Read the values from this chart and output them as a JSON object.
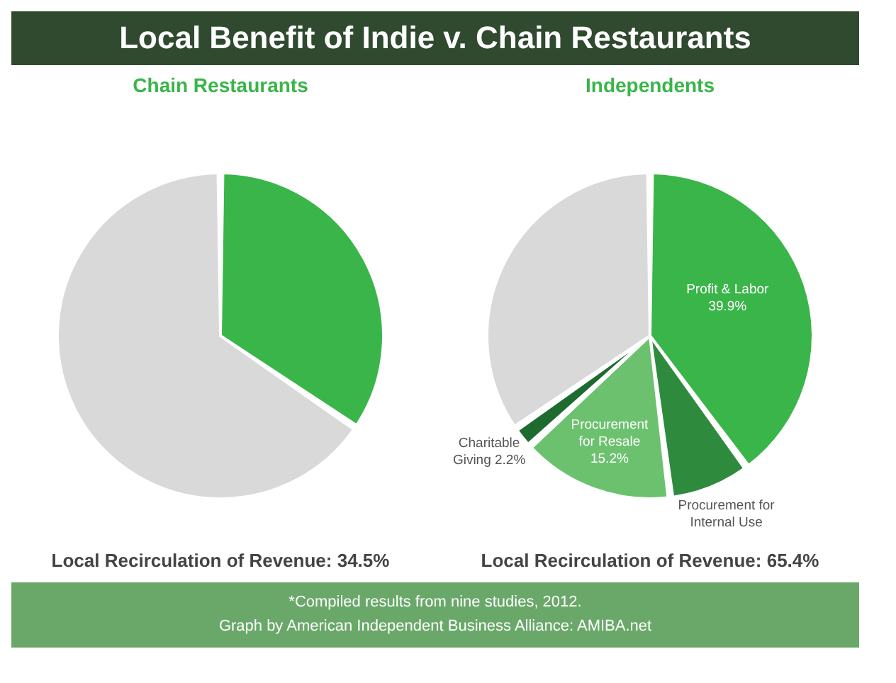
{
  "chart_data": [
    {
      "type": "pie",
      "title": "Local Benefit of Indie v. Chain Restaurants",
      "subtitle": "Chain Restaurants",
      "categories": [
        null,
        null
      ],
      "values": [
        34.5,
        65.5
      ],
      "colors": [
        "#3ab54a",
        "#d9d9d9"
      ],
      "annotations": [
        "Local Recirculation of Revenue: 34.5%",
        "*Compiled results from nine studies, 2012.",
        "Graph by American Independent Business Alliance: AMIBA.net"
      ]
    },
    {
      "type": "pie",
      "subtitle": "Independents",
      "categories": [
        "Profit & Labor",
        "Procurement for Internal Use",
        "Procurement for Resale",
        "Charitable Giving",
        null
      ],
      "values": [
        39.9,
        8.1,
        15.2,
        2.2,
        34.6
      ],
      "value_labels": [
        "39.9%",
        null,
        "15.2%",
        "2.2%",
        null
      ],
      "colors": [
        "#3ab54a",
        "#2e8b3e",
        "#6cc16f",
        "#1e6b30",
        "#d9d9d9"
      ],
      "annotations": [
        "Local Recirculation of Revenue: 65.4%"
      ]
    }
  ]
}
